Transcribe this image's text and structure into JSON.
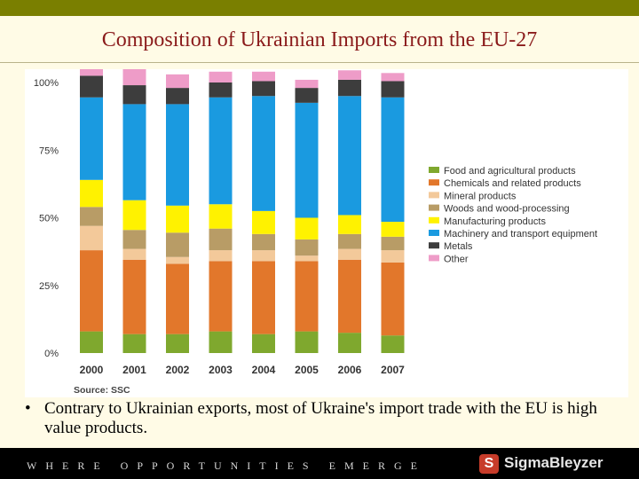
{
  "title": "Composition of Ukrainian Imports from the EU-27",
  "bullet": {
    "marker": "•",
    "text": "Contrary to Ukrainian exports, most of Ukraine's import trade with the EU is high value products."
  },
  "footer": {
    "tagline": "WHERE OPPORTUNITIES EMERGE",
    "logo_mark": "S",
    "logo_text": "SigmaBleyzer"
  },
  "colors": {
    "Food": "#7fa82e",
    "Chemicals": "#e2772b",
    "Mineral": "#f3c99a",
    "Woods": "#b89c66",
    "Manufacturing": "#fff200",
    "Machinery": "#1a9ae0",
    "Metals": "#3d3d3d",
    "Other": "#ee9cc8"
  },
  "chart_data": {
    "type": "bar",
    "stacked": true,
    "title": "Composition of Ukrainian Imports from the EU-27",
    "source": "Source: SSC",
    "categories": [
      "2000",
      "2001",
      "2002",
      "2003",
      "2004",
      "2005",
      "2006",
      "2007"
    ],
    "y_ticks": [
      "0%",
      "25%",
      "50%",
      "75%",
      "100%"
    ],
    "ylim": [
      0,
      100
    ],
    "legend_position": "right",
    "series": [
      {
        "name": "Food and agricultural products",
        "key": "Food",
        "values": [
          8,
          7,
          7,
          8,
          7,
          8,
          7.5,
          6.5
        ]
      },
      {
        "name": "Chemicals and related products",
        "key": "Chemicals",
        "values": [
          30,
          27.5,
          26,
          26,
          27,
          26,
          27,
          27
        ]
      },
      {
        "name": "Mineral products",
        "key": "Mineral",
        "values": [
          9,
          4,
          2.5,
          4,
          4,
          2,
          4,
          4.5
        ]
      },
      {
        "name": "Woods and wood-processing",
        "key": "Woods",
        "values": [
          7,
          7,
          9,
          8,
          6,
          6,
          5.5,
          5
        ]
      },
      {
        "name": "Manufacturing products",
        "key": "Manufacturing",
        "values": [
          10,
          11,
          10,
          9,
          8.5,
          8,
          7,
          5.5
        ]
      },
      {
        "name": "Machinery and transport equipment",
        "key": "Machinery",
        "values": [
          30.5,
          35.5,
          37.5,
          39.5,
          42.5,
          42.5,
          44,
          46
        ]
      },
      {
        "name": "Metals",
        "key": "Metals",
        "values": [
          8,
          7,
          6,
          5.5,
          5.5,
          5.5,
          6,
          6
        ]
      },
      {
        "name": "Other",
        "key": "Other",
        "values": [
          7.5,
          6,
          5,
          4,
          3.5,
          3,
          3.5,
          3
        ]
      }
    ]
  }
}
